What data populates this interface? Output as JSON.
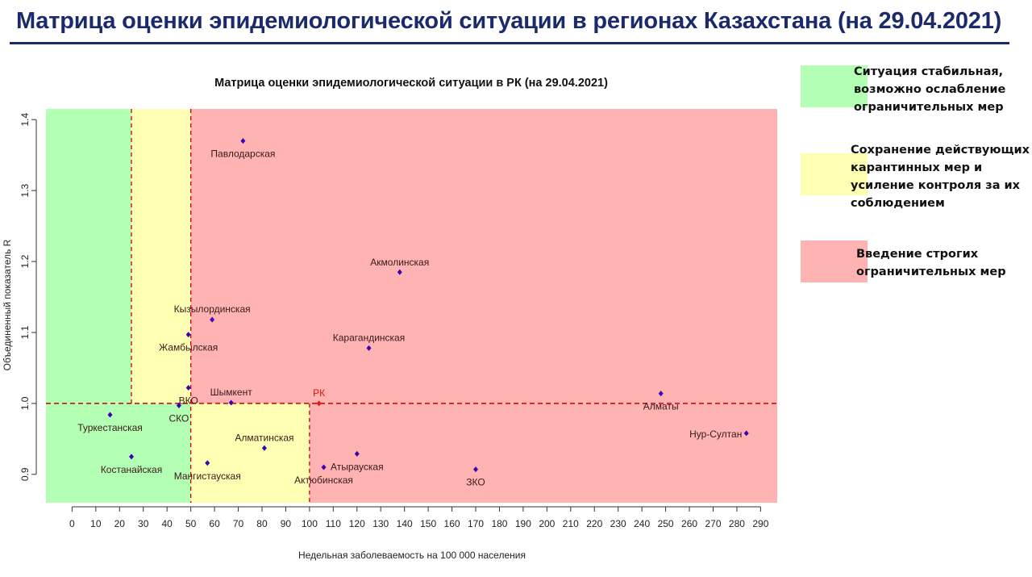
{
  "header": {
    "title": "Матрица оценки эпидемиологической ситуации в регионах Казахстана (на 29.04.2021)",
    "title_color": "#1b2a6b"
  },
  "legend": [
    {
      "color": "#b3ffb3",
      "text": "Ситуация стабильная,\nвозможно ослабление\nограничительных мер"
    },
    {
      "color": "#ffffb3",
      "text": "Сохранение действующих\nкарантинных мер и\nусиление контроля за их\nсоблюдением"
    },
    {
      "color": "#ffb3b3",
      "text": "Введение строгих\nограничительных мер"
    }
  ],
  "chart_data": {
    "type": "scatter",
    "title": "Матрица оценки эпидемиологической ситуации в РК (на 29.04.2021)",
    "xlabel": "Недельная заболеваемость на 100 000 населения",
    "ylabel": "Объединенный показатель R",
    "xlim": [
      -11,
      297
    ],
    "ylim": [
      0.86,
      1.415
    ],
    "xticks": [
      0,
      10,
      20,
      30,
      40,
      50,
      60,
      70,
      80,
      90,
      100,
      110,
      120,
      130,
      140,
      150,
      160,
      170,
      180,
      190,
      200,
      210,
      220,
      230,
      240,
      250,
      260,
      270,
      280,
      290
    ],
    "yticks": [
      0.9,
      1.0,
      1.1,
      1.2,
      1.3,
      1.4
    ],
    "ytick_labels": [
      "0.9",
      "1.0",
      "1.1",
      "1.2",
      "1.3",
      "1.4"
    ],
    "zones": [
      {
        "x": [
          -11,
          25
        ],
        "y": [
          1.0,
          1.415
        ],
        "color": "#b3ffb3"
      },
      {
        "x": [
          25,
          50
        ],
        "y": [
          1.0,
          1.415
        ],
        "color": "#ffffb3"
      },
      {
        "x": [
          50,
          297
        ],
        "y": [
          1.0,
          1.415
        ],
        "color": "#ffb3b3"
      },
      {
        "x": [
          -11,
          50
        ],
        "y": [
          0.86,
          1.0
        ],
        "color": "#b3ffb3"
      },
      {
        "x": [
          50,
          100
        ],
        "y": [
          0.86,
          1.0
        ],
        "color": "#ffffb3"
      },
      {
        "x": [
          100,
          297
        ],
        "y": [
          0.86,
          1.0
        ],
        "color": "#ffb3b3"
      }
    ],
    "reference_lines": {
      "vertical": [
        {
          "x": 25,
          "y": [
            1.0,
            1.415
          ]
        },
        {
          "x": 50,
          "y": [
            0.86,
            1.415
          ]
        },
        {
          "x": 100,
          "y": [
            0.86,
            1.0
          ]
        }
      ],
      "horizontal": [
        {
          "y": 1.0,
          "x": [
            -11,
            297
          ]
        }
      ],
      "color": "#cc0000"
    },
    "point_color": "#3b00b3",
    "label_color": "#3a1a1a",
    "points": [
      {
        "label": "Павлодарская",
        "x": 72,
        "y": 1.37,
        "lx": 0,
        "ly": 20
      },
      {
        "label": "Акмолинская",
        "x": 138,
        "y": 1.185,
        "lx": 0,
        "ly": -8
      },
      {
        "label": "Кызылординская",
        "x": 59,
        "y": 1.118,
        "lx": 0,
        "ly": -9
      },
      {
        "label": "Жамбылская",
        "x": 49,
        "y": 1.097,
        "lx": 0,
        "ly": 20
      },
      {
        "label": "Карагандинская",
        "x": 125,
        "y": 1.078,
        "lx": 0,
        "ly": -9
      },
      {
        "label": "ВКО",
        "x": 49,
        "y": 1.022,
        "lx": 0,
        "ly": 20
      },
      {
        "label": "Шымкент",
        "x": 67,
        "y": 1.001,
        "lx": 0,
        "ly": -9
      },
      {
        "label": "РК",
        "x": 104,
        "y": 1.0,
        "lx": 0,
        "ly": -9,
        "color": "#ee1111",
        "label_color": "#dd1111"
      },
      {
        "label": "СКО",
        "x": 45,
        "y": 0.997,
        "lx": 0,
        "ly": 20
      },
      {
        "label": "Туркестанская",
        "x": 16,
        "y": 0.984,
        "lx": 0,
        "ly": 20
      },
      {
        "label": "Костанайская",
        "x": 25,
        "y": 0.925,
        "lx": 0,
        "ly": 20
      },
      {
        "label": "Алматинская",
        "x": 81,
        "y": 0.937,
        "lx": 0,
        "ly": -9
      },
      {
        "label": "Мангистауская",
        "x": 57,
        "y": 0.916,
        "lx": 0,
        "ly": 20
      },
      {
        "label": "Атырауская",
        "x": 120,
        "y": 0.929,
        "lx": 0,
        "ly": 20
      },
      {
        "label": "Актюбинская",
        "x": 106,
        "y": 0.91,
        "lx": 0,
        "ly": 20
      },
      {
        "label": "ЗКО",
        "x": 170,
        "y": 0.907,
        "lx": 0,
        "ly": 20
      },
      {
        "label": "Алматы",
        "x": 248,
        "y": 1.014,
        "lx": 0,
        "ly": 20
      },
      {
        "label": "Нур-Султан",
        "x": 284,
        "y": 0.958,
        "lx": -38,
        "ly": 5
      }
    ]
  }
}
